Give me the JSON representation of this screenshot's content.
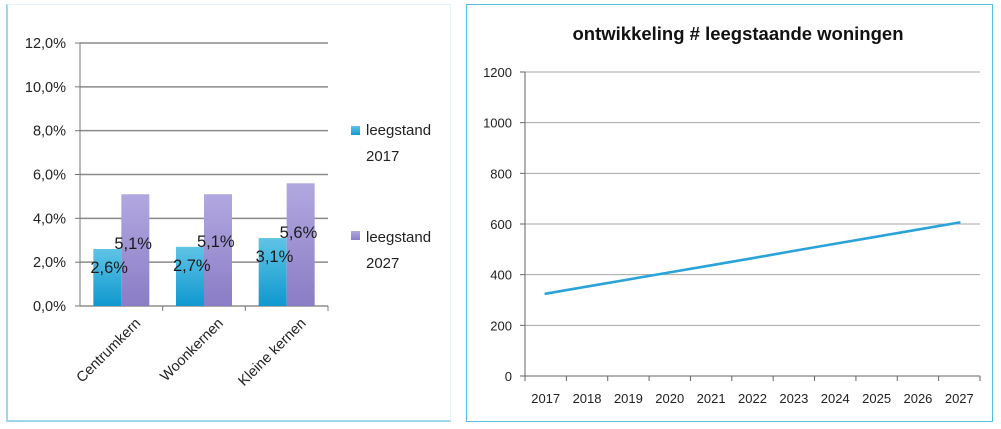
{
  "chart_data": [
    {
      "type": "bar",
      "title": "",
      "xlabel": "",
      "ylabel": "",
      "ylim": [
        0,
        12
      ],
      "y_ticks": [
        "0,0%",
        "2,0%",
        "4,0%",
        "6,0%",
        "8,0%",
        "10,0%",
        "12,0%"
      ],
      "categories": [
        "Centrumkern",
        "Woonkernen",
        "Kleine kernen"
      ],
      "series": [
        {
          "name": "leegstand 2017",
          "legend_lines": [
            "leegstand",
            "2017"
          ],
          "values": [
            2.6,
            2.7,
            3.1
          ],
          "labels": [
            "2,6%",
            "2,7%",
            "3,1%"
          ],
          "color": "#1fa6d8"
        },
        {
          "name": "leegstand 2027",
          "legend_lines": [
            "leegstand",
            "2027"
          ],
          "values": [
            5.1,
            5.1,
            5.6
          ],
          "labels": [
            "5,1%",
            "5,1%",
            "5,6%"
          ],
          "color": "#9b8fd3"
        }
      ],
      "legend_position": "right",
      "grid": true
    },
    {
      "type": "line",
      "title": "ontwikkeling # leegstaande woningen",
      "xlabel": "",
      "ylabel": "",
      "ylim": [
        0,
        1200
      ],
      "y_ticks": [
        "0",
        "200",
        "400",
        "600",
        "800",
        "1000",
        "1200"
      ],
      "x": [
        "2017",
        "2018",
        "2019",
        "2020",
        "2021",
        "2022",
        "2023",
        "2024",
        "2025",
        "2026",
        "2027"
      ],
      "series": [
        {
          "name": "leegstaande woningen",
          "values": [
            325,
            353,
            381,
            409,
            437,
            465,
            494,
            522,
            550,
            578,
            606
          ],
          "color": "#2aa3d9"
        }
      ],
      "grid": true
    }
  ]
}
